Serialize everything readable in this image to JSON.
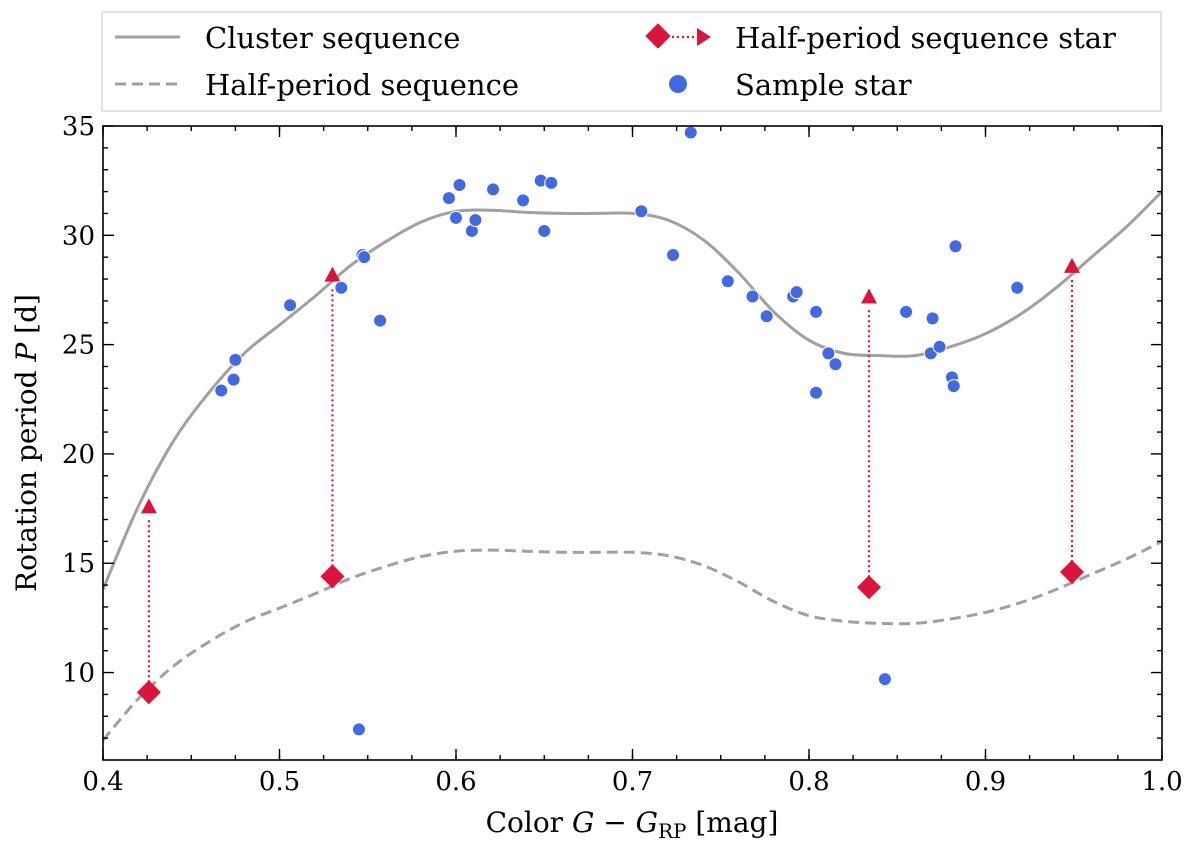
{
  "chart_data": {
    "type": "scatter",
    "xlabel": "Color G − G_RP [mag]",
    "xlabel_parts": {
      "prefix": "Color ",
      "math": "G − G",
      "sub": "RP",
      "suffix": " [mag]"
    },
    "ylabel": "Rotation period P [d]",
    "ylabel_parts": {
      "prefix": "Rotation period ",
      "math": "P",
      "suffix": " [d]"
    },
    "xlim": [
      0.4,
      1.0
    ],
    "ylim": [
      6.0,
      35.0
    ],
    "x_ticks": [
      0.4,
      0.5,
      0.6,
      0.7,
      0.8,
      0.9,
      1.0
    ],
    "x_tick_labels": [
      "0.4",
      "0.5",
      "0.6",
      "0.7",
      "0.8",
      "0.9",
      "1.0"
    ],
    "y_ticks": [
      10,
      15,
      20,
      25,
      30,
      35
    ],
    "y_tick_labels": [
      "10",
      "15",
      "20",
      "25",
      "30",
      "35"
    ],
    "grid": false,
    "legend_position": "top (above plot)",
    "legend": {
      "cluster_sequence": "Cluster sequence",
      "half_period_sequence": "Half-period sequence",
      "half_period_star": "Half-period sequence star",
      "sample_star": "Sample star"
    },
    "colors": {
      "sequence": "#a0a0a0",
      "half_period_star": "#dc143c",
      "sample_star": "#4169e1"
    },
    "series": [
      {
        "name": "Cluster sequence",
        "style": "solid",
        "points": [
          [
            0.4,
            13.8
          ],
          [
            0.42,
            17.6
          ],
          [
            0.44,
            20.6
          ],
          [
            0.46,
            22.8
          ],
          [
            0.48,
            24.6
          ],
          [
            0.5,
            25.9
          ],
          [
            0.52,
            27.2
          ],
          [
            0.54,
            28.6
          ],
          [
            0.56,
            29.7
          ],
          [
            0.58,
            30.6
          ],
          [
            0.6,
            31.1
          ],
          [
            0.62,
            31.15
          ],
          [
            0.64,
            31.05
          ],
          [
            0.66,
            31.0
          ],
          [
            0.68,
            31.0
          ],
          [
            0.7,
            31.0
          ],
          [
            0.72,
            30.7
          ],
          [
            0.74,
            29.8
          ],
          [
            0.76,
            28.3
          ],
          [
            0.78,
            26.5
          ],
          [
            0.8,
            25.2
          ],
          [
            0.82,
            24.6
          ],
          [
            0.84,
            24.5
          ],
          [
            0.86,
            24.5
          ],
          [
            0.88,
            24.9
          ],
          [
            0.9,
            25.5
          ],
          [
            0.92,
            26.4
          ],
          [
            0.94,
            27.6
          ],
          [
            0.96,
            29.0
          ],
          [
            0.98,
            30.4
          ],
          [
            1.0,
            32.0
          ]
        ]
      },
      {
        "name": "Half-period sequence",
        "style": "dashed",
        "points": [
          [
            0.4,
            6.9
          ],
          [
            0.42,
            8.8
          ],
          [
            0.44,
            10.3
          ],
          [
            0.46,
            11.4
          ],
          [
            0.48,
            12.3
          ],
          [
            0.5,
            12.95
          ],
          [
            0.52,
            13.6
          ],
          [
            0.54,
            14.3
          ],
          [
            0.56,
            14.85
          ],
          [
            0.58,
            15.3
          ],
          [
            0.6,
            15.55
          ],
          [
            0.62,
            15.6
          ],
          [
            0.64,
            15.55
          ],
          [
            0.66,
            15.5
          ],
          [
            0.68,
            15.5
          ],
          [
            0.7,
            15.5
          ],
          [
            0.72,
            15.35
          ],
          [
            0.74,
            14.9
          ],
          [
            0.76,
            14.15
          ],
          [
            0.78,
            13.25
          ],
          [
            0.8,
            12.6
          ],
          [
            0.82,
            12.35
          ],
          [
            0.84,
            12.25
          ],
          [
            0.86,
            12.25
          ],
          [
            0.88,
            12.45
          ],
          [
            0.9,
            12.75
          ],
          [
            0.92,
            13.2
          ],
          [
            0.94,
            13.8
          ],
          [
            0.96,
            14.5
          ],
          [
            0.98,
            15.2
          ],
          [
            1.0,
            16.0
          ]
        ]
      },
      {
        "name": "Half-period sequence star",
        "stars": [
          {
            "x": 0.426,
            "p": 9.1,
            "p_target": 17.6
          },
          {
            "x": 0.53,
            "p": 14.4,
            "p_target": 28.2
          },
          {
            "x": 0.834,
            "p": 13.9,
            "p_target": 27.2
          },
          {
            "x": 0.949,
            "p": 14.6,
            "p_target": 28.6
          }
        ]
      },
      {
        "name": "Sample star",
        "points": [
          [
            0.467,
            22.9
          ],
          [
            0.474,
            23.4
          ],
          [
            0.475,
            24.3
          ],
          [
            0.506,
            26.8
          ],
          [
            0.535,
            27.6
          ],
          [
            0.545,
            7.4
          ],
          [
            0.547,
            29.1
          ],
          [
            0.548,
            29.0
          ],
          [
            0.557,
            26.1
          ],
          [
            0.596,
            31.7
          ],
          [
            0.6,
            30.8
          ],
          [
            0.602,
            32.3
          ],
          [
            0.609,
            30.2
          ],
          [
            0.611,
            30.7
          ],
          [
            0.621,
            32.1
          ],
          [
            0.638,
            31.6
          ],
          [
            0.648,
            32.5
          ],
          [
            0.65,
            30.2
          ],
          [
            0.654,
            32.4
          ],
          [
            0.705,
            31.1
          ],
          [
            0.723,
            29.1
          ],
          [
            0.733,
            34.7
          ],
          [
            0.754,
            27.9
          ],
          [
            0.768,
            27.2
          ],
          [
            0.776,
            26.3
          ],
          [
            0.791,
            27.2
          ],
          [
            0.793,
            27.4
          ],
          [
            0.804,
            26.5
          ],
          [
            0.804,
            22.8
          ],
          [
            0.811,
            24.6
          ],
          [
            0.815,
            24.1
          ],
          [
            0.843,
            9.7
          ],
          [
            0.855,
            26.5
          ],
          [
            0.869,
            24.6
          ],
          [
            0.87,
            26.2
          ],
          [
            0.874,
            24.9
          ],
          [
            0.881,
            23.5
          ],
          [
            0.882,
            23.1
          ],
          [
            0.883,
            29.5
          ],
          [
            0.918,
            27.6
          ]
        ]
      }
    ]
  }
}
